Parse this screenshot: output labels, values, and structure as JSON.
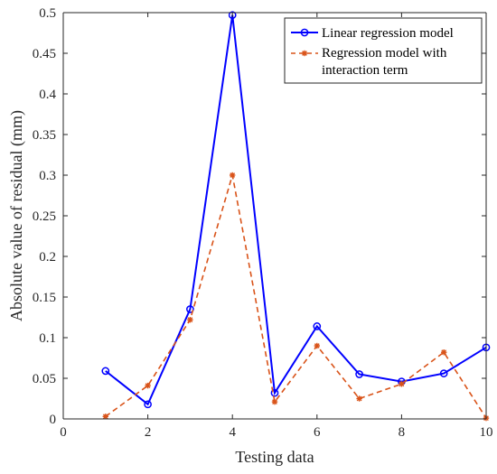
{
  "chart_data": {
    "type": "line",
    "title": "",
    "xlabel": "Testing data",
    "ylabel": "Absolute value of residual (mm)",
    "xlim": [
      0,
      10
    ],
    "ylim": [
      0,
      0.5
    ],
    "xticks": [
      0,
      2,
      4,
      6,
      8,
      10
    ],
    "xtick_labels": [
      "0",
      "2",
      "4",
      "6",
      "8",
      "10"
    ],
    "yticks": [
      0,
      0.05,
      0.1,
      0.15,
      0.2,
      0.25,
      0.3,
      0.35,
      0.4,
      0.45,
      0.5
    ],
    "ytick_labels": [
      "0",
      "0.05",
      "0.1",
      "0.15",
      "0.2",
      "0.25",
      "0.3",
      "0.35",
      "0.4",
      "0.45",
      "0.5"
    ],
    "grid": false,
    "legend_position": "top-right",
    "x": [
      1,
      2,
      3,
      4,
      5,
      6,
      7,
      8,
      9,
      10
    ],
    "series": [
      {
        "name": "Linear regression model",
        "values": [
          0.059,
          0.018,
          0.135,
          0.497,
          0.032,
          0.114,
          0.055,
          0.046,
          0.056,
          0.088
        ],
        "color": "#0000ff",
        "line_style": "solid",
        "marker": "circle"
      },
      {
        "name_lines": [
          "Regression model with",
          "interaction term"
        ],
        "values": [
          0.003,
          0.041,
          0.122,
          0.3,
          0.021,
          0.09,
          0.025,
          0.043,
          0.082,
          0.001
        ],
        "color": "#d95319",
        "line_style": "dashed",
        "marker": "asterisk"
      }
    ]
  }
}
